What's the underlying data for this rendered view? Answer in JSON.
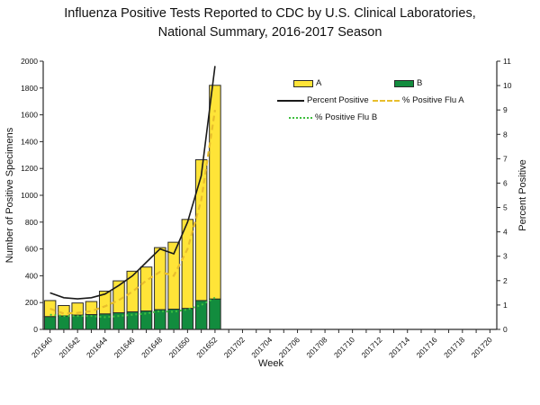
{
  "title": {
    "line1": "Influenza Positive Tests Reported to CDC by U.S. Clinical Laboratories,",
    "line2": "National Summary, 2016-2017 Season"
  },
  "axes": {
    "y_left": {
      "label": "Number of Positive Specimens",
      "min": 0,
      "max": 2000,
      "tick_step": 200
    },
    "y_right": {
      "label": "Percent Positive",
      "min": 0,
      "max": 11,
      "tick_step": 1
    },
    "x": {
      "label": "Week",
      "all_weeks": [
        "201640",
        "201641",
        "201642",
        "201643",
        "201644",
        "201645",
        "201646",
        "201647",
        "201648",
        "201649",
        "201650",
        "201651",
        "201652",
        "201701",
        "201702",
        "201703",
        "201704",
        "201705",
        "201706",
        "201707",
        "201708",
        "201709",
        "201710",
        "201711",
        "201712",
        "201713",
        "201714",
        "201715",
        "201716",
        "201717",
        "201718",
        "201719",
        "201720"
      ],
      "label_every": 2
    }
  },
  "legend": [
    {
      "label": "A",
      "type": "box",
      "color": "#FFE438"
    },
    {
      "label": "B",
      "type": "box",
      "color": "#128C3E"
    },
    {
      "label": "Percent Positive",
      "type": "line",
      "color": "#1a1a1a"
    },
    {
      "label": "% Positive Flu A",
      "type": "dashed",
      "color": "#E8BE2D"
    },
    {
      "label": "% Positive Flu B",
      "type": "dotted",
      "color": "#3FBF3F"
    }
  ],
  "colors": {
    "bar_a": "#FFE438",
    "bar_b": "#128C3E",
    "bar_stroke": "#2a2a2a",
    "line_percent": "#1a1a1a",
    "line_flu_a": "#E8BE2D",
    "line_flu_b": "#3FBF3F",
    "axis": "#2a2a2a"
  },
  "chart_data": {
    "type": "bar",
    "subtype": "stacked-bars-with-lines",
    "title": "Influenza Positive Tests Reported to CDC by U.S. Clinical Laboratories, National Summary, 2016-2017 Season",
    "xlabel": "Week",
    "ylabel_left": "Number of Positive Specimens",
    "ylabel_right": "Percent Positive",
    "ylim_left": [
      0,
      2000
    ],
    "ylim_right": [
      0,
      11
    ],
    "grid": false,
    "legend_position": "top-right-inside",
    "categories": [
      "201640",
      "201641",
      "201642",
      "201643",
      "201644",
      "201645",
      "201646",
      "201647",
      "201648",
      "201649",
      "201650",
      "201651",
      "201652"
    ],
    "series": [
      {
        "name": "A",
        "type": "bar",
        "stacked": true,
        "axis": "left",
        "values": [
          120,
          78,
          91,
          98,
          170,
          238,
          303,
          328,
          463,
          499,
          664,
          1050,
          1594
        ]
      },
      {
        "name": "B",
        "type": "bar",
        "stacked": true,
        "axis": "left",
        "values": [
          95,
          100,
          106,
          110,
          115,
          124,
          131,
          137,
          147,
          151,
          156,
          215,
          226
        ]
      },
      {
        "name": "Percent Positive",
        "type": "line",
        "style": "solid",
        "axis": "right",
        "values": [
          1.5,
          1.3,
          1.25,
          1.3,
          1.45,
          1.8,
          2.2,
          2.75,
          3.3,
          3.1,
          4.4,
          6.3,
          10.8
        ]
      },
      {
        "name": "% Positive Flu A",
        "type": "line",
        "style": "dashed",
        "axis": "right",
        "values": [
          0.85,
          0.65,
          0.68,
          0.75,
          0.95,
          1.2,
          1.55,
          2.0,
          2.36,
          2.2,
          3.3,
          5.3,
          9.0
        ]
      },
      {
        "name": "% Positive Flu B",
        "type": "line",
        "style": "dotted",
        "axis": "right",
        "values": [
          0.6,
          0.55,
          0.55,
          0.55,
          0.5,
          0.55,
          0.6,
          0.65,
          0.75,
          0.72,
          0.82,
          1.0,
          1.3
        ]
      }
    ]
  }
}
